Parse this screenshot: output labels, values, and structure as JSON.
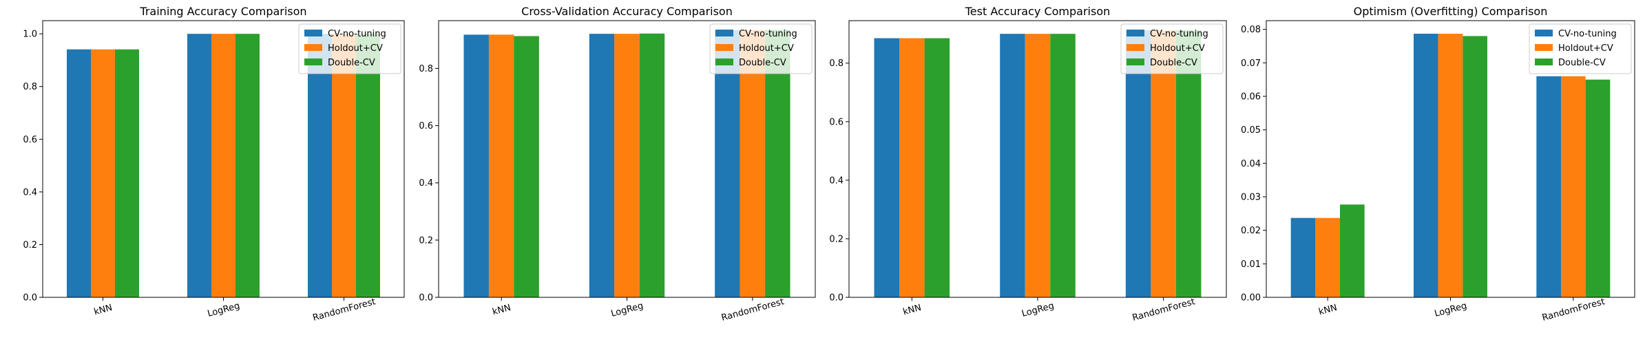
{
  "chart_data": [
    {
      "type": "bar",
      "title": "Training Accuracy Comparison",
      "categories": [
        "kNN",
        "LogReg",
        "RandomForest"
      ],
      "ylim": [
        0,
        1.05
      ],
      "yticks": [
        "0.0",
        "0.2",
        "0.4",
        "0.6",
        "0.8",
        "1.0"
      ],
      "ytick_values": [
        0,
        0.2,
        0.4,
        0.6,
        0.8,
        1.0
      ],
      "legend": "top-right",
      "series": [
        {
          "name": "CV-no-tuning",
          "color": "#1f77b4",
          "values": [
            0.941,
            1.0,
            1.0
          ]
        },
        {
          "name": "Holdout+CV",
          "color": "#ff7f0e",
          "values": [
            0.941,
            1.0,
            1.0
          ]
        },
        {
          "name": "Double-CV",
          "color": "#2ca02c",
          "values": [
            0.941,
            1.0,
            1.0
          ]
        }
      ]
    },
    {
      "type": "bar",
      "title": "Cross-Validation Accuracy Comparison",
      "categories": [
        "kNN",
        "LogReg",
        "RandomForest"
      ],
      "ylim": [
        0,
        0.967
      ],
      "yticks": [
        "0.0",
        "0.2",
        "0.4",
        "0.6",
        "0.8"
      ],
      "ytick_values": [
        0,
        0.2,
        0.4,
        0.6,
        0.8
      ],
      "legend": "top-right",
      "series": [
        {
          "name": "CV-no-tuning",
          "color": "#1f77b4",
          "values": [
            0.918,
            0.921,
            0.934
          ]
        },
        {
          "name": "Holdout+CV",
          "color": "#ff7f0e",
          "values": [
            0.918,
            0.921,
            0.934
          ]
        },
        {
          "name": "Double-CV",
          "color": "#2ca02c",
          "values": [
            0.913,
            0.922,
            0.935
          ]
        }
      ]
    },
    {
      "type": "bar",
      "title": "Test Accuracy Comparison",
      "categories": [
        "kNN",
        "LogReg",
        "RandomForest"
      ],
      "ylim": [
        0,
        0.945
      ],
      "yticks": [
        "0.0",
        "0.2",
        "0.4",
        "0.6",
        "0.8"
      ],
      "ytick_values": [
        0,
        0.2,
        0.4,
        0.6,
        0.8
      ],
      "legend": "top-right",
      "series": [
        {
          "name": "CV-no-tuning",
          "color": "#1f77b4",
          "values": [
            0.885,
            0.9,
            0.912
          ]
        },
        {
          "name": "Holdout+CV",
          "color": "#ff7f0e",
          "values": [
            0.885,
            0.9,
            0.912
          ]
        },
        {
          "name": "Double-CV",
          "color": "#2ca02c",
          "values": [
            0.885,
            0.9,
            0.912
          ]
        }
      ]
    },
    {
      "type": "bar",
      "title": "Optimism (Overfitting) Comparison",
      "categories": [
        "kNN",
        "LogReg",
        "RandomForest"
      ],
      "ylim": [
        0,
        0.0826
      ],
      "yticks": [
        "0.00",
        "0.01",
        "0.02",
        "0.03",
        "0.04",
        "0.05",
        "0.06",
        "0.07",
        "0.08"
      ],
      "ytick_values": [
        0,
        0.01,
        0.02,
        0.03,
        0.04,
        0.05,
        0.06,
        0.07,
        0.08
      ],
      "legend": "top-right",
      "series": [
        {
          "name": "CV-no-tuning",
          "color": "#1f77b4",
          "values": [
            0.0237,
            0.0787,
            0.066
          ]
        },
        {
          "name": "Holdout+CV",
          "color": "#ff7f0e",
          "values": [
            0.0237,
            0.0787,
            0.066
          ]
        },
        {
          "name": "Double-CV",
          "color": "#2ca02c",
          "values": [
            0.0277,
            0.078,
            0.065
          ]
        }
      ]
    }
  ]
}
